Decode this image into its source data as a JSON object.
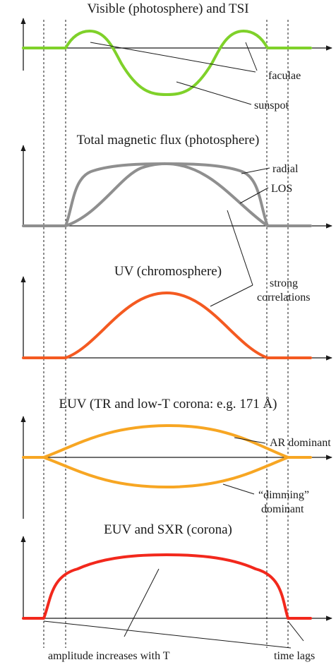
{
  "colors": {
    "visible": "#7fd12a",
    "magnetic": "#8f8f8f",
    "uv": "#f45a21",
    "euv": "#f7a623",
    "corona": "#f2281c",
    "ink": "#1a1a1a"
  },
  "panels": {
    "visible": {
      "title": "Visible (photosphere) and TSI",
      "faculae": "faculae",
      "sunspot": "sunspot"
    },
    "magnetic": {
      "title": "Total magnetic flux (photosphere)",
      "radial": "radial",
      "los": "LOS"
    },
    "uv": {
      "title": "UV (chromosphere)",
      "strong": "strong",
      "correlations": "correlations"
    },
    "euv": {
      "title": "EUV (TR and low-T corona: e.g. 171 Å)",
      "ar_dominant": "AR dominant",
      "dimming": "“dimming”",
      "dimming_dominant": "dominant"
    },
    "corona": {
      "title": "EUV and SXR (corona)",
      "amplitude": "amplitude increases with T",
      "time_lags": "time lags"
    }
  }
}
